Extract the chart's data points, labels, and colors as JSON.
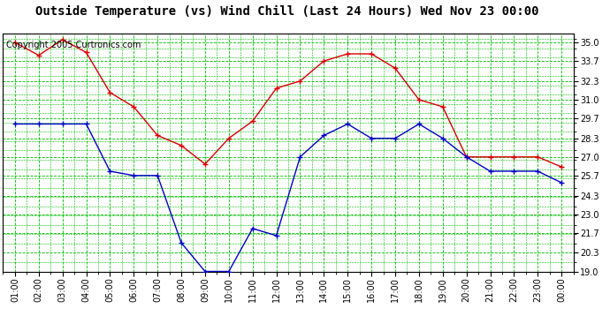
{
  "title": "Outside Temperature (vs) Wind Chill (Last 24 Hours) Wed Nov 23 00:00",
  "copyright": "Copyright 2005 Curtronics.com",
  "x_labels": [
    "01:00",
    "02:00",
    "03:00",
    "04:00",
    "05:00",
    "06:00",
    "07:00",
    "08:00",
    "09:00",
    "10:00",
    "11:00",
    "12:00",
    "13:00",
    "14:00",
    "15:00",
    "16:00",
    "17:00",
    "18:00",
    "19:00",
    "20:00",
    "21:00",
    "22:00",
    "23:00",
    "00:00"
  ],
  "red_data": [
    35.0,
    34.1,
    35.2,
    34.3,
    31.5,
    30.5,
    28.5,
    27.8,
    26.5,
    28.3,
    29.5,
    31.8,
    32.3,
    33.7,
    34.2,
    34.2,
    33.2,
    31.0,
    30.5,
    27.0,
    27.0,
    27.0,
    27.0,
    26.3
  ],
  "blue_data": [
    29.3,
    29.3,
    29.3,
    29.3,
    26.0,
    25.7,
    25.7,
    21.0,
    19.0,
    19.0,
    22.0,
    21.5,
    27.0,
    28.5,
    29.3,
    28.3,
    28.3,
    29.3,
    28.3,
    27.0,
    26.0,
    26.0,
    26.0,
    25.2
  ],
  "y_ticks": [
    19.0,
    20.3,
    21.7,
    23.0,
    24.3,
    25.7,
    27.0,
    28.3,
    29.7,
    31.0,
    32.3,
    33.7,
    35.0
  ],
  "y_min": 19.0,
  "y_max": 35.65,
  "bg_color": "#ffffff",
  "plot_bg_color": "#ffffff",
  "grid_major_color": "#00bb00",
  "grid_minor_color": "#00bb00",
  "red_color": "#dd0000",
  "blue_color": "#0000cc",
  "title_fontsize": 10,
  "copyright_fontsize": 7,
  "tick_fontsize": 7
}
